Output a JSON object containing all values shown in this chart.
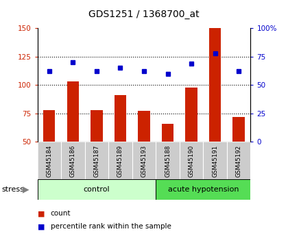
{
  "title": "GDS1251 / 1368700_at",
  "categories": [
    "GSM45184",
    "GSM45186",
    "GSM45187",
    "GSM45189",
    "GSM45193",
    "GSM45188",
    "GSM45190",
    "GSM45191",
    "GSM45192"
  ],
  "bar_values": [
    78,
    103,
    78,
    91,
    77,
    66,
    98,
    150,
    72
  ],
  "dot_values": [
    112,
    120,
    112,
    115,
    112,
    110,
    119,
    128,
    112
  ],
  "bar_color": "#cc2200",
  "dot_color": "#0000cc",
  "ylim_left": [
    50,
    150
  ],
  "ylim_right": [
    0,
    100
  ],
  "yticks_left": [
    50,
    75,
    100,
    125,
    150
  ],
  "yticks_right": [
    0,
    25,
    50,
    75,
    100
  ],
  "ytick_labels_left": [
    "50",
    "75",
    "100",
    "125",
    "150"
  ],
  "ytick_labels_right": [
    "0",
    "25",
    "50",
    "75",
    "100%"
  ],
  "group_control_n": 5,
  "group_acute_n": 4,
  "control_label": "control",
  "acute_label": "acute hypotension",
  "stress_label": "stress",
  "legend_count": "count",
  "legend_pct": "percentile rank within the sample",
  "control_color": "#ccffcc",
  "acute_color": "#55dd55",
  "label_area_color": "#cccccc",
  "dotted_grid_values": [
    75,
    100,
    125
  ],
  "bar_bottom": 50,
  "bar_width": 0.5
}
